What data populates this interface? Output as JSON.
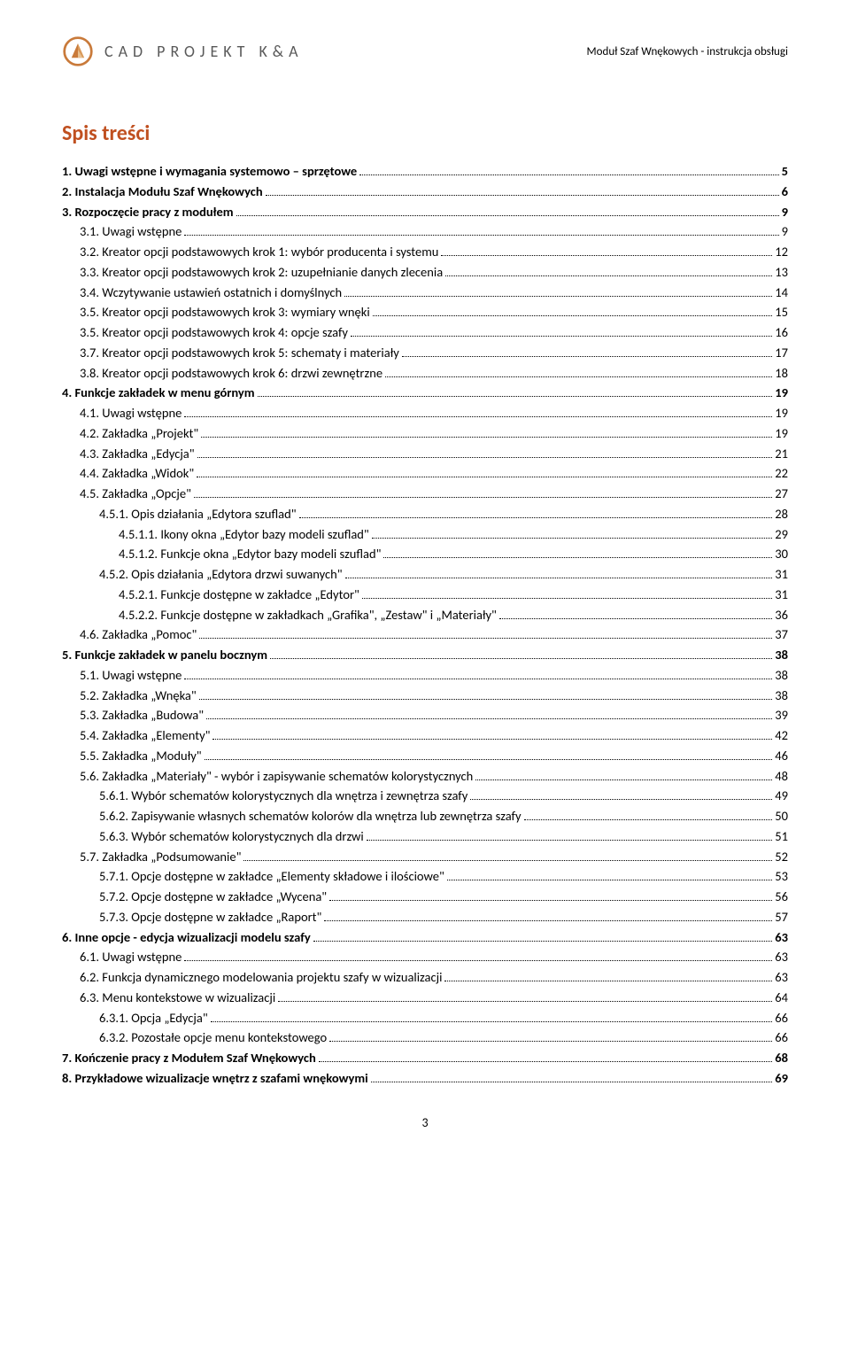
{
  "header": {
    "company": "CAD PROJEKT K&A",
    "doc_title": "Moduł Szaf Wnękowych - instrukcja obsługi"
  },
  "title": "Spis treści",
  "page_number": "3",
  "toc": [
    {
      "level": 0,
      "bold": true,
      "label": "1. Uwagi wstępne i wymagania systemowo – sprzętowe",
      "page": "5"
    },
    {
      "level": 0,
      "bold": true,
      "label": "2. Instalacja Modułu Szaf Wnękowych",
      "page": "6"
    },
    {
      "level": 0,
      "bold": true,
      "label": "3. Rozpoczęcie pracy z modułem",
      "page": "9"
    },
    {
      "level": 1,
      "bold": false,
      "label": "3.1. Uwagi wstępne",
      "page": "9"
    },
    {
      "level": 1,
      "bold": false,
      "label": "3.2. Kreator opcji podstawowych krok 1: wybór producenta i systemu",
      "page": "12"
    },
    {
      "level": 1,
      "bold": false,
      "label": "3.3. Kreator opcji podstawowych krok 2: uzupełnianie danych zlecenia",
      "page": "13"
    },
    {
      "level": 1,
      "bold": false,
      "label": "3.4. Wczytywanie ustawień ostatnich i domyślnych",
      "page": "14"
    },
    {
      "level": 1,
      "bold": false,
      "label": "3.5. Kreator opcji podstawowych krok 3: wymiary wnęki",
      "page": "15"
    },
    {
      "level": 1,
      "bold": false,
      "label": "3.5. Kreator opcji podstawowych krok 4: opcje szafy",
      "page": "16"
    },
    {
      "level": 1,
      "bold": false,
      "label": "3.7. Kreator opcji podstawowych krok 5: schematy i materiały",
      "page": "17"
    },
    {
      "level": 1,
      "bold": false,
      "label": "3.8. Kreator opcji podstawowych krok 6: drzwi zewnętrzne",
      "page": "18"
    },
    {
      "level": 0,
      "bold": true,
      "label": "4. Funkcje zakładek w menu górnym",
      "page": "19"
    },
    {
      "level": 1,
      "bold": false,
      "label": "4.1. Uwagi wstępne",
      "page": "19"
    },
    {
      "level": 1,
      "bold": false,
      "label": "4.2. Zakładka „Projekt\"",
      "page": "19"
    },
    {
      "level": 1,
      "bold": false,
      "label": "4.3. Zakładka „Edycja\"",
      "page": "21"
    },
    {
      "level": 1,
      "bold": false,
      "label": "4.4. Zakładka „Widok\"",
      "page": "22"
    },
    {
      "level": 1,
      "bold": false,
      "label": "4.5. Zakładka „Opcje\"",
      "page": "27"
    },
    {
      "level": 2,
      "bold": false,
      "label": "4.5.1. Opis działania „Edytora szuflad\"",
      "page": "28"
    },
    {
      "level": 3,
      "bold": false,
      "label": "4.5.1.1. Ikony okna  „Edytor bazy modeli szuflad\"",
      "page": "29"
    },
    {
      "level": 3,
      "bold": false,
      "label": "4.5.1.2. Funkcje okna  „Edytor bazy modeli szuflad\"",
      "page": "30"
    },
    {
      "level": 2,
      "bold": false,
      "label": "4.5.2. Opis działania „Edytora drzwi suwanych\"",
      "page": "31"
    },
    {
      "level": 3,
      "bold": false,
      "label": "4.5.2.1. Funkcje dostępne w zakładce „Edytor\"",
      "page": "31"
    },
    {
      "level": 3,
      "bold": false,
      "label": "4.5.2.2. Funkcje dostępne w zakładkach „Grafika\", „Zestaw\" i „Materiały\"",
      "page": "36"
    },
    {
      "level": 1,
      "bold": false,
      "label": "4.6. Zakładka „Pomoc\"",
      "page": "37"
    },
    {
      "level": 0,
      "bold": true,
      "label": "5. Funkcje zakładek w panelu bocznym",
      "page": "38"
    },
    {
      "level": 1,
      "bold": false,
      "label": "5.1. Uwagi wstępne",
      "page": "38"
    },
    {
      "level": 1,
      "bold": false,
      "label": "5.2. Zakładka „Wnęka\"",
      "page": "38"
    },
    {
      "level": 1,
      "bold": false,
      "label": "5.3. Zakładka „Budowa\"",
      "page": "39"
    },
    {
      "level": 1,
      "bold": false,
      "label": "5.4. Zakładka „Elementy\"",
      "page": "42"
    },
    {
      "level": 1,
      "bold": false,
      "label": "5.5. Zakładka „Moduły\"",
      "page": "46"
    },
    {
      "level": 1,
      "bold": false,
      "label": "5.6. Zakładka „Materiały\" - wybór i zapisywanie schematów kolorystycznych",
      "page": "48"
    },
    {
      "level": 2,
      "bold": false,
      "label": "5.6.1. Wybór schematów kolorystycznych dla wnętrza i zewnętrza szafy",
      "page": "49"
    },
    {
      "level": 2,
      "bold": false,
      "label": "5.6.2. Zapisywanie własnych schematów kolorów dla wnętrza lub zewnętrza szafy",
      "page": "50"
    },
    {
      "level": 2,
      "bold": false,
      "label": "5.6.3. Wybór schematów kolorystycznych dla drzwi",
      "page": "51"
    },
    {
      "level": 1,
      "bold": false,
      "label": "5.7. Zakładka „Podsumowanie\"",
      "page": "52"
    },
    {
      "level": 2,
      "bold": false,
      "label": "5.7.1. Opcje dostępne w zakładce „Elementy składowe i ilościowe\"",
      "page": "53"
    },
    {
      "level": 2,
      "bold": false,
      "label": "5.7.2. Opcje dostępne w zakładce „Wycena\"",
      "page": "56"
    },
    {
      "level": 2,
      "bold": false,
      "label": "5.7.3. Opcje dostępne w zakładce „Raport\"",
      "page": "57"
    },
    {
      "level": 0,
      "bold": true,
      "label": "6. Inne opcje - edycja wizualizacji modelu szafy",
      "page": "63"
    },
    {
      "level": 1,
      "bold": false,
      "label": "6.1. Uwagi wstępne",
      "page": "63"
    },
    {
      "level": 1,
      "bold": false,
      "label": "6.2. Funkcja dynamicznego modelowania projektu szafy w wizualizacji",
      "page": "63"
    },
    {
      "level": 1,
      "bold": false,
      "label": "6.3. Menu kontekstowe w wizualizacji",
      "page": "64"
    },
    {
      "level": 2,
      "bold": false,
      "label": "6.3.1. Opcja „Edycja\"",
      "page": "66"
    },
    {
      "level": 2,
      "bold": false,
      "label": "6.3.2. Pozostałe opcje menu kontekstowego",
      "page": "66"
    },
    {
      "level": 0,
      "bold": true,
      "label": "7. Kończenie pracy z Modułem Szaf Wnękowych",
      "page": "68"
    },
    {
      "level": 0,
      "bold": true,
      "label": "8. Przykładowe wizualizacje wnętrz z szafami wnękowymi",
      "page": "69"
    }
  ],
  "style": {
    "title_color": "#c05020",
    "logo_colors": {
      "stroke": "#c97a3a",
      "tri1": "#c97a3a",
      "tri2": "#d99a5a",
      "tri3": "#e8c090"
    }
  }
}
